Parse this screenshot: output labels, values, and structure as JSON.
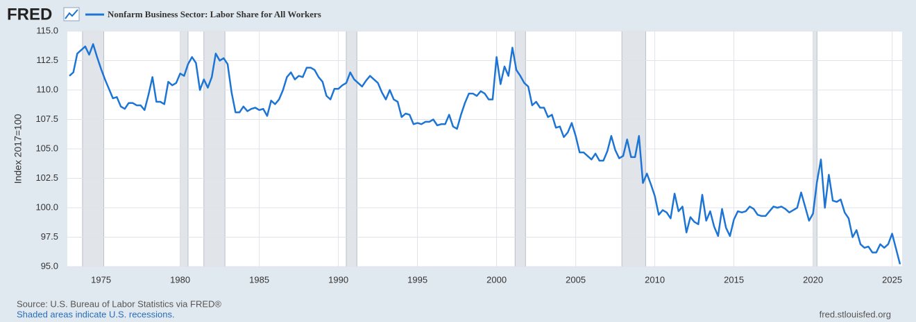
{
  "chart_data": {
    "type": "line",
    "brand": "FRED",
    "y_label": "Index 2017=100",
    "source": "Source: U.S. Bureau of Labor Statistics via FRED®",
    "note": "Shaded areas indicate U.S. recessions.",
    "site": "fred.stlouisfed.org",
    "xlim": [
      1973,
      2025.5
    ],
    "ylim": [
      95,
      115
    ],
    "xticks": [
      1975,
      1980,
      1985,
      1990,
      1995,
      2000,
      2005,
      2010,
      2015,
      2020,
      2025
    ],
    "yticks": [
      {
        "value": 95,
        "label": "95.0"
      },
      97.5,
      {
        "value": 100,
        "label": "100.0"
      },
      102.5,
      {
        "value": 105,
        "label": "105.0"
      },
      107.5,
      {
        "value": 110,
        "label": "110.0"
      },
      112.5,
      {
        "value": 115,
        "label": "115.0"
      }
    ],
    "grid": true,
    "recessions": [
      [
        1973.83,
        1975.17
      ],
      [
        1980.0,
        1980.5
      ],
      [
        1981.5,
        1982.83
      ],
      [
        1990.5,
        1991.17
      ],
      [
        2001.17,
        2001.83
      ],
      [
        2007.92,
        2009.42
      ],
      [
        2020.0,
        2020.25
      ]
    ],
    "recession_color": "#e1e5ea",
    "x": [
      1973,
      1973.25,
      1973.5,
      1973.75,
      1974,
      1974.25,
      1974.5,
      1974.75,
      1975,
      1975.25,
      1975.5,
      1975.75,
      1976,
      1976.25,
      1976.5,
      1976.75,
      1977,
      1977.25,
      1977.5,
      1977.75,
      1978,
      1978.25,
      1978.5,
      1978.75,
      1979,
      1979.25,
      1979.5,
      1979.75,
      1980,
      1980.25,
      1980.5,
      1980.75,
      1981,
      1981.25,
      1981.5,
      1981.75,
      1982,
      1982.25,
      1982.5,
      1982.75,
      1983,
      1983.25,
      1983.5,
      1983.75,
      1984,
      1984.25,
      1984.5,
      1984.75,
      1985,
      1985.25,
      1985.5,
      1985.75,
      1986,
      1986.25,
      1986.5,
      1986.75,
      1987,
      1987.25,
      1987.5,
      1987.75,
      1988,
      1988.25,
      1988.5,
      1988.75,
      1989,
      1989.25,
      1989.5,
      1989.75,
      1990,
      1990.25,
      1990.5,
      1990.75,
      1991,
      1991.25,
      1991.5,
      1991.75,
      1992,
      1992.25,
      1992.5,
      1992.75,
      1993,
      1993.25,
      1993.5,
      1993.75,
      1994,
      1994.25,
      1994.5,
      1994.75,
      1995,
      1995.25,
      1995.5,
      1995.75,
      1996,
      1996.25,
      1996.5,
      1996.75,
      1997,
      1997.25,
      1997.5,
      1997.75,
      1998,
      1998.25,
      1998.5,
      1998.75,
      1999,
      1999.25,
      1999.5,
      1999.75,
      2000,
      2000.25,
      2000.5,
      2000.75,
      2001,
      2001.25,
      2001.5,
      2001.75,
      2002,
      2002.25,
      2002.5,
      2002.75,
      2003,
      2003.25,
      2003.5,
      2003.75,
      2004,
      2004.25,
      2004.5,
      2004.75,
      2005,
      2005.25,
      2005.5,
      2005.75,
      2006,
      2006.25,
      2006.5,
      2006.75,
      2007,
      2007.25,
      2007.5,
      2007.75,
      2008,
      2008.25,
      2008.5,
      2008.75,
      2009,
      2009.25,
      2009.5,
      2009.75,
      2010,
      2010.25,
      2010.5,
      2010.75,
      2011,
      2011.25,
      2011.5,
      2011.75,
      2012,
      2012.25,
      2012.5,
      2012.75,
      2013,
      2013.25,
      2013.5,
      2013.75,
      2014,
      2014.25,
      2014.5,
      2014.75,
      2015,
      2015.25,
      2015.5,
      2015.75,
      2016,
      2016.25,
      2016.5,
      2016.75,
      2017,
      2017.25,
      2017.5,
      2017.75,
      2018,
      2018.25,
      2018.5,
      2018.75,
      2019,
      2019.25,
      2019.5,
      2019.75,
      2020,
      2020.25,
      2020.5,
      2020.75,
      2021,
      2021.25,
      2021.5,
      2021.75,
      2022,
      2022.25,
      2022.5,
      2022.75,
      2023,
      2023.25,
      2023.5,
      2023.75,
      2024,
      2024.25,
      2024.5,
      2024.75,
      2025,
      2025.25,
      2025.5
    ],
    "series": [
      {
        "name": "Nonfarm Business Sector: Labor Share for All Workers",
        "color": "#1c74d4",
        "values": [
          111.2,
          111.5,
          113.1,
          113.4,
          113.7,
          113.0,
          113.9,
          112.8,
          111.8,
          110.9,
          110.1,
          109.3,
          109.4,
          108.6,
          108.4,
          108.9,
          108.9,
          108.7,
          108.7,
          108.3,
          109.6,
          111.1,
          109.0,
          109.0,
          108.8,
          110.7,
          110.4,
          110.6,
          111.4,
          111.2,
          112.2,
          112.8,
          112.3,
          110.0,
          110.9,
          110.2,
          111.1,
          113.1,
          112.5,
          112.7,
          112.2,
          109.8,
          108.1,
          108.1,
          108.6,
          108.2,
          108.4,
          108.5,
          108.3,
          108.4,
          107.8,
          109.1,
          108.8,
          109.2,
          110.0,
          111.1,
          111.5,
          110.9,
          111.2,
          111.1,
          111.9,
          111.9,
          111.7,
          111.1,
          110.7,
          109.5,
          109.2,
          110.1,
          110.1,
          110.4,
          110.6,
          111.5,
          110.9,
          110.6,
          110.3,
          110.8,
          111.2,
          110.9,
          110.6,
          109.8,
          109.2,
          110.0,
          109.2,
          109.0,
          107.7,
          108.0,
          107.9,
          107.1,
          107.2,
          107.1,
          107.3,
          107.3,
          107.5,
          107.0,
          107.1,
          107.1,
          107.9,
          106.9,
          106.7,
          107.9,
          108.9,
          109.7,
          109.7,
          109.5,
          109.9,
          109.7,
          109.2,
          109.2,
          112.8,
          110.5,
          112.0,
          111.2,
          113.6,
          111.7,
          111.2,
          110.6,
          110.3,
          108.7,
          109.0,
          108.5,
          108.5,
          107.7,
          107.9,
          106.8,
          106.9,
          106.0,
          106.4,
          107.2,
          106.1,
          104.7,
          104.7,
          104.4,
          104.1,
          104.6,
          104.0,
          104.0,
          104.8,
          106.1,
          104.9,
          104.2,
          104.4,
          105.8,
          104.3,
          104.3,
          106.1,
          102.1,
          102.9,
          102.0,
          101.0,
          99.4,
          99.8,
          99.6,
          99.1,
          101.2,
          99.7,
          100.1,
          97.9,
          99.2,
          98.8,
          98.6,
          101.1,
          98.9,
          99.7,
          98.4,
          97.6,
          99.9,
          98.3,
          97.6,
          99.0,
          99.7,
          99.6,
          99.7,
          100.1,
          99.9,
          99.4,
          99.3,
          99.3,
          99.7,
          100.1,
          100.0,
          100.1,
          99.9,
          99.6,
          99.8,
          100.0,
          101.3,
          100.1,
          98.9,
          99.5,
          102.2,
          104.1,
          100.0,
          102.8,
          100.6,
          100.5,
          100.7,
          99.6,
          99.1,
          97.5,
          98.1,
          96.9,
          96.6,
          96.7,
          96.2,
          96.2,
          96.9,
          96.6,
          96.9,
          97.8,
          96.5,
          95.2
        ]
      }
    ]
  }
}
